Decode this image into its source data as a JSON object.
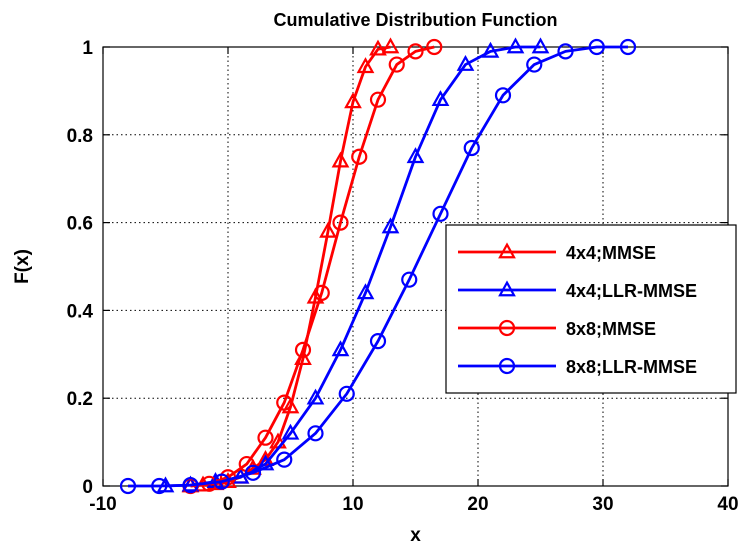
{
  "chart_data": {
    "type": "line",
    "title": "Cumulative Distribution Function",
    "xlabel": "x",
    "ylabel": "F(x)",
    "xlim": [
      -10,
      40
    ],
    "ylim": [
      0,
      1
    ],
    "x_ticks": [
      -10,
      0,
      10,
      20,
      30,
      40
    ],
    "y_ticks": [
      0,
      0.2,
      0.4,
      0.6,
      0.8,
      1
    ],
    "x_tick_labels": [
      "-10",
      "0",
      "10",
      "20",
      "30",
      "40"
    ],
    "y_tick_labels": [
      "0",
      "0.2",
      "0.4",
      "0.6",
      "0.8",
      "1"
    ],
    "grid": true,
    "legend_position": "right",
    "series": [
      {
        "name": "4x4;MMSE",
        "color": "#ff0000",
        "marker": "triangle",
        "x": [
          -3.0,
          -2.0,
          -1.0,
          0.0,
          1.0,
          2.0,
          3.0,
          4.0,
          5.0,
          6.0,
          7.0,
          8.0,
          9.0,
          10.0,
          11.0,
          12.0,
          13.0
        ],
        "y": [
          0.0,
          0.002,
          0.005,
          0.01,
          0.02,
          0.04,
          0.06,
          0.1,
          0.18,
          0.29,
          0.43,
          0.58,
          0.74,
          0.875,
          0.955,
          0.995,
          1.0
        ]
      },
      {
        "name": "4x4;LLR-MMSE",
        "color": "#0000ff",
        "marker": "triangle",
        "x": [
          -5.0,
          -3.0,
          -1.0,
          1.0,
          3.0,
          5.0,
          7.0,
          9.0,
          11.0,
          13.0,
          15.0,
          17.0,
          19.0,
          21.0,
          23.0,
          25.0
        ],
        "y": [
          0.0,
          0.002,
          0.01,
          0.02,
          0.05,
          0.12,
          0.2,
          0.31,
          0.44,
          0.59,
          0.75,
          0.88,
          0.96,
          0.99,
          1.0,
          1.0
        ]
      },
      {
        "name": "8x8;MMSE",
        "color": "#ff0000",
        "marker": "circle",
        "x": [
          -3.0,
          -1.5,
          0.0,
          1.5,
          3.0,
          4.5,
          6.0,
          7.5,
          9.0,
          10.5,
          12.0,
          13.5,
          15.0,
          16.5
        ],
        "y": [
          0.0,
          0.005,
          0.02,
          0.05,
          0.11,
          0.19,
          0.31,
          0.44,
          0.6,
          0.75,
          0.88,
          0.96,
          0.99,
          1.0
        ]
      },
      {
        "name": "8x8;LLR-MMSE",
        "color": "#0000ff",
        "marker": "circle",
        "x": [
          -8.0,
          -5.5,
          -3.0,
          -0.5,
          2.0,
          4.5,
          7.0,
          9.5,
          12.0,
          14.5,
          17.0,
          19.5,
          22.0,
          24.5,
          27.0,
          29.5,
          32.0
        ],
        "y": [
          0.0,
          0.0,
          0.002,
          0.01,
          0.03,
          0.06,
          0.12,
          0.21,
          0.33,
          0.47,
          0.62,
          0.77,
          0.89,
          0.96,
          0.99,
          1.0,
          1.0
        ]
      }
    ]
  }
}
